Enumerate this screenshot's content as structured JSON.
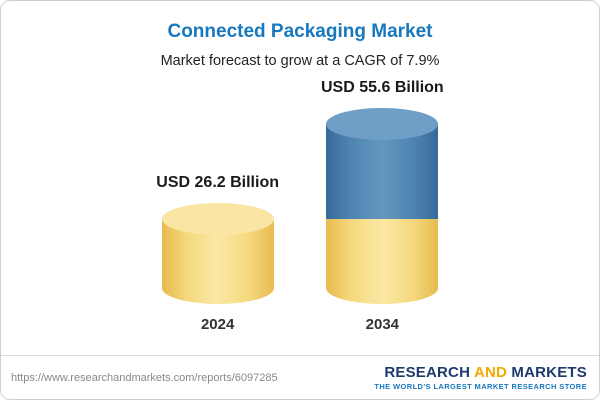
{
  "title": "Connected Packaging Market",
  "subtitle": "Market forecast to grow at a CAGR of 7.9%",
  "chart_data": {
    "type": "bar",
    "bar_style": "cylinder-stacked",
    "categories": [
      "2024",
      "2034"
    ],
    "values": [
      26.2,
      55.6
    ],
    "value_labels": [
      "USD 26.2 Billion",
      "USD 55.6 Billion"
    ],
    "unit": "USD Billion",
    "cagr": "7.9%",
    "title": "Connected Packaging Market",
    "subtitle": "Market forecast to grow at a CAGR of 7.9%",
    "ylim": [
      0,
      60
    ],
    "grid": "off",
    "legend": "none",
    "notes": "2034 cylinder is stacked: yellow base equals 2024 value, blue top segment is growth from 26.2 to 55.6",
    "colors": {
      "base_segment": "#F3D87E",
      "growth_segment": "#4E84B1",
      "title_accent": "#1878BE"
    }
  },
  "footer": {
    "url": "https://www.researchandmarkets.com/reports/6097285",
    "logo": {
      "research": "RESEARCH",
      "and": "AND",
      "markets": "MARKETS",
      "tagline": "THE WORLD'S LARGEST MARKET RESEARCH STORE",
      "navy": "#1E3A6D",
      "gold": "#F2A900"
    }
  }
}
